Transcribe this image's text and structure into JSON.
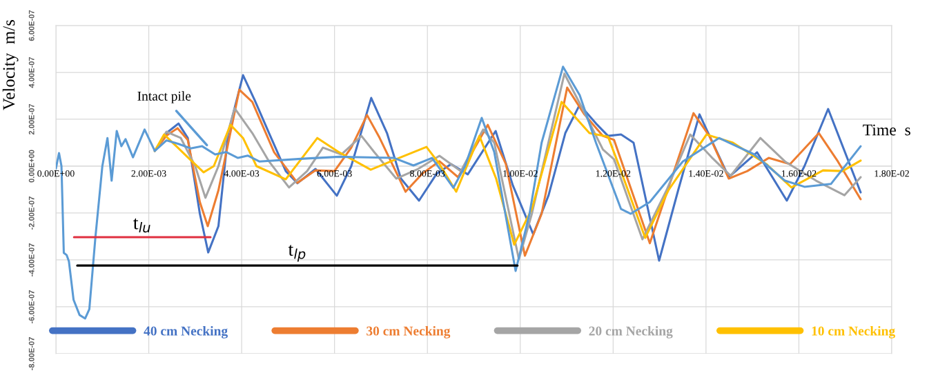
{
  "chart_data": {
    "type": "line",
    "xlabel": "Time  s",
    "ylabel": "Velocity  m/s",
    "xlim": [
      0,
      0.018
    ],
    "ylim": [
      -8e-07,
      6e-07
    ],
    "xticks": [
      {
        "value": 0,
        "label": "0.00E+00"
      },
      {
        "value": 0.002,
        "label": "2.00E-03"
      },
      {
        "value": 0.004,
        "label": "4.00E-03"
      },
      {
        "value": 0.006,
        "label": "6.00E-03"
      },
      {
        "value": 0.008,
        "label": "8.00E-03"
      },
      {
        "value": 0.01,
        "label": "1.00E-02"
      },
      {
        "value": 0.012,
        "label": "1.20E-02"
      },
      {
        "value": 0.014,
        "label": "1.40E-02"
      },
      {
        "value": 0.016,
        "label": "1.60E-02"
      },
      {
        "value": 0.018,
        "label": "1.80E-02"
      }
    ],
    "yticks": [
      {
        "value": -8e-07,
        "label": "-8.00E-07"
      },
      {
        "value": -6e-07,
        "label": "-6.00E-07"
      },
      {
        "value": -4e-07,
        "label": "-4.00E-07"
      },
      {
        "value": -2e-07,
        "label": "-2.00E-07"
      },
      {
        "value": 0,
        "label": "0.00E+00"
      },
      {
        "value": 2e-07,
        "label": "2.00E-07"
      },
      {
        "value": 4e-07,
        "label": "4.00E-07"
      },
      {
        "value": 6e-07,
        "label": "6.00E-07"
      }
    ],
    "grid": true,
    "legend": "bottom",
    "annotations": [
      {
        "text": "Intact pile",
        "x": 0.00325,
        "y": 9e-08
      },
      "t$_{lu}$",
      "t$_{lp}$"
    ],
    "series": [
      {
        "name": "40 cm Necking",
        "color": "#4472c4",
        "x": [
          0.00213,
          0.00238,
          0.00264,
          0.00284,
          0.0031,
          0.00328,
          0.0035,
          0.00371,
          0.00403,
          0.00428,
          0.00459,
          0.00495,
          0.0052,
          0.00559,
          0.00605,
          0.00636,
          0.00679,
          0.00713,
          0.00743,
          0.00782,
          0.0082,
          0.00851,
          0.00887,
          0.00947,
          0.00984,
          0.01028,
          0.01061,
          0.01097,
          0.01128,
          0.01163,
          0.01189,
          0.01217,
          0.01244,
          0.01299,
          0.0134,
          0.01386,
          0.01449,
          0.0151,
          0.01574,
          0.01612,
          0.01663,
          0.01733
        ],
        "values": [
          6.5e-08,
          1.41e-07,
          1.82e-07,
          1.2e-07,
          -2.03e-07,
          -3.68e-07,
          -2.56e-07,
          1.41e-07,
          3.88e-07,
          2.82e-07,
          1.41e-07,
          -2.1e-08,
          -7.3e-08,
          -1.2e-08,
          -1.26e-07,
          0,
          2.91e-07,
          1.41e-07,
          -5.3e-08,
          -1.47e-07,
          -3.2e-08,
          9e-09,
          -3.5e-08,
          1.5e-07,
          -8.2e-08,
          -2.91e-07,
          -1.24e-07,
          1.41e-07,
          2.62e-07,
          1.82e-07,
          1.29e-07,
          1.35e-07,
          1e-07,
          -4.03e-07,
          -1.03e-07,
          2.21e-07,
          -4.7e-08,
          5.9e-08,
          -1.47e-07,
          0,
          2.44e-07,
          -1.12e-07
        ]
      },
      {
        "name": "30 cm Necking",
        "color": "#ed7d31",
        "x": [
          0.00213,
          0.00238,
          0.00262,
          0.00284,
          0.0031,
          0.00327,
          0.0035,
          0.00395,
          0.00423,
          0.0047,
          0.0052,
          0.00559,
          0.006,
          0.00636,
          0.0067,
          0.00697,
          0.00753,
          0.00789,
          0.00826,
          0.00866,
          0.0093,
          0.00969,
          0.0101,
          0.01046,
          0.01101,
          0.01138,
          0.01178,
          0.01202,
          0.01279,
          0.01373,
          0.01407,
          0.01449,
          0.01489,
          0.01535,
          0.01581,
          0.01643,
          0.01684,
          0.01733
        ],
        "values": [
          6.5e-08,
          1.3e-07,
          1.62e-07,
          1.12e-07,
          -1.53e-07,
          -2.56e-07,
          -1.03e-07,
          3.26e-07,
          2.74e-07,
          5.9e-08,
          -7.1e-08,
          -1.8e-08,
          -2.1e-08,
          7.9e-08,
          2.18e-07,
          1.21e-07,
          -1.09e-07,
          -3.2e-08,
          2.1e-08,
          -4.7e-08,
          1.76e-07,
          9e-09,
          -3.82e-07,
          -2.03e-07,
          3.35e-07,
          2.21e-07,
          1.29e-07,
          1.12e-07,
          -3.29e-07,
          2.26e-07,
          1.29e-07,
          -5.3e-08,
          -2.1e-08,
          3.5e-08,
          9e-09,
          1.41e-07,
          2e-08,
          -1.41e-07
        ]
      },
      {
        "name": "20 cm Necking",
        "color": "#a5a5a5",
        "x": [
          0.00213,
          0.00238,
          0.00269,
          0.003,
          0.00322,
          0.0035,
          0.00385,
          0.00423,
          0.00459,
          0.00502,
          0.00541,
          0.00575,
          0.00615,
          0.00658,
          0.00686,
          0.00733,
          0.0078,
          0.00826,
          0.00872,
          0.0092,
          0.00944,
          0.00997,
          0.01025,
          0.01095,
          0.01132,
          0.01178,
          0.01202,
          0.01263,
          0.01315,
          0.01366,
          0.01412,
          0.01453,
          0.01517,
          0.0157,
          0.01637,
          0.01698,
          0.01733
        ],
        "values": [
          6.5e-08,
          1.47e-07,
          1.2e-07,
          0,
          -1.35e-07,
          0,
          2.47e-07,
          1.41e-07,
          2e-08,
          -9.1e-08,
          -2.1e-08,
          7.9e-08,
          5e-08,
          1.29e-07,
          5.9e-08,
          -5.3e-08,
          -1.2e-08,
          4.4e-08,
          -2.1e-08,
          1.56e-07,
          1e-07,
          -3.97e-07,
          -2.03e-07,
          3.94e-07,
          2.53e-07,
          7.1e-08,
          2.9e-08,
          -3.12e-07,
          -1.03e-07,
          1.35e-07,
          3.8e-08,
          -4.1e-08,
          1.2e-07,
          2e-08,
          -6.2e-08,
          -1.24e-07,
          -4.7e-08
        ]
      },
      {
        "name": "10 cm Necking",
        "color": "#ffc000",
        "x": [
          0.00213,
          0.00233,
          0.00284,
          0.00318,
          0.0034,
          0.00376,
          0.00403,
          0.00432,
          0.00495,
          0.00563,
          0.0061,
          0.00678,
          0.00739,
          0.00798,
          0.00826,
          0.00862,
          0.00912,
          0.00948,
          0.00987,
          0.01025,
          0.01089,
          0.01149,
          0.01189,
          0.01217,
          0.01269,
          0.01319,
          0.01401,
          0.01458,
          0.0153,
          0.01584,
          0.01652,
          0.01694,
          0.01733
        ],
        "values": [
          6.5e-08,
          1.35e-07,
          3.8e-08,
          -2.6e-08,
          0,
          1.76e-07,
          1.2e-07,
          0,
          -5.6e-08,
          1.2e-07,
          5.9e-08,
          -1.5e-08,
          3.5e-08,
          8.2e-08,
          9e-09,
          -1.09e-07,
          1.29e-07,
          -5.3e-08,
          -3.35e-07,
          -1.82e-07,
          2.74e-07,
          1.41e-07,
          1.26e-07,
          -2.1e-08,
          -3.06e-07,
          -1.03e-07,
          1.35e-07,
          1e-07,
          9e-09,
          -9.1e-08,
          -1.8e-08,
          -2.1e-08,
          2.4e-08
        ]
      },
      {
        "color": "#5b9bd5",
        "x": [
          0,
          6.7e-05,
          0.00012,
          0.00017,
          0.00023,
          0.00028,
          0.00038,
          0.00051,
          0.00063,
          0.00072,
          0.00085,
          0.001,
          0.00111,
          0.0012,
          0.00131,
          0.00141,
          0.0015,
          0.00166,
          0.00191,
          0.00213,
          0.00238,
          0.00264,
          0.0029,
          0.00315,
          0.00343,
          0.00367,
          0.00392,
          0.00413,
          0.00438,
          0.00533,
          0.0061,
          0.00728,
          0.0077,
          0.0081,
          0.00856,
          0.00881,
          0.00917,
          0.00944,
          0.0099,
          0.0102,
          0.01046,
          0.01092,
          0.01128,
          0.01163,
          0.01217,
          0.01238,
          0.01279,
          0.0135,
          0.01428,
          0.01504,
          0.0157,
          0.01612,
          0.01669,
          0.01733
        ],
        "values": [
          -1e-08,
          5.6e-08,
          0,
          -3.7e-07,
          -3.79e-07,
          -4.06e-07,
          -5.7e-07,
          -6.35e-07,
          -6.5e-07,
          -6.1e-07,
          -3.05e-07,
          0,
          1.2e-07,
          -6.2e-08,
          1.5e-07,
          8.5e-08,
          1.15e-07,
          3.8e-08,
          1.56e-07,
          6.5e-08,
          1.1e-07,
          9.5e-08,
          7.6e-08,
          8.5e-08,
          5e-08,
          6e-08,
          3.5e-08,
          4.5e-08,
          2e-08,
          3.2e-08,
          4e-08,
          3.5e-08,
          3e-09,
          3.5e-08,
          -9.2e-08,
          0,
          2.06e-07,
          6e-08,
          -4.47e-07,
          -2.03e-07,
          1e-07,
          4.24e-07,
          3.03e-07,
          1e-07,
          -1.83e-07,
          -2.03e-07,
          -1.53e-07,
          2e-08,
          1.2e-07,
          5e-08,
          -6.2e-08,
          -8.8e-08,
          -7.6e-08,
          8.5e-08
        ]
      },
      {
        "type": "line",
        "color": "#e03040",
        "x": [
          0.00039,
          0.00333
        ],
        "values": [
          -3.03e-07,
          -3.03e-07
        ]
      },
      {
        "type": "line",
        "color": "#000000",
        "x": [
          0.00046,
          0.00994
        ],
        "values": [
          -4.24e-07,
          -4.24e-07
        ]
      }
    ]
  }
}
